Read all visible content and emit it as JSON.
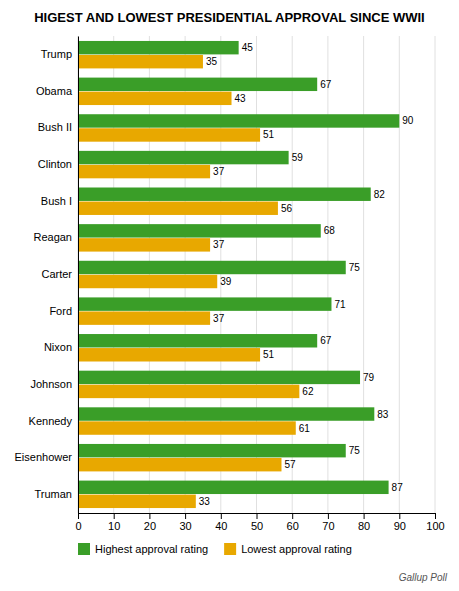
{
  "chart_data": {
    "type": "bar",
    "orientation": "horizontal",
    "title": "HIGEST AND LOWEST PRESIDENTIAL APPROVAL SINCE WWII",
    "categories": [
      "Trump",
      "Obama",
      "Bush II",
      "Clinton",
      "Bush I",
      "Reagan",
      "Carter",
      "Ford",
      "Nixon",
      "Johnson",
      "Kennedy",
      "Eisenhower",
      "Truman"
    ],
    "series": [
      {
        "name": "Highest approval rating",
        "color": "#3a9e28",
        "values": [
          45,
          67,
          90,
          59,
          82,
          68,
          75,
          71,
          67,
          79,
          83,
          75,
          87
        ]
      },
      {
        "name": "Lowest approval rating",
        "color": "#e8a800",
        "values": [
          35,
          43,
          51,
          37,
          56,
          37,
          39,
          37,
          51,
          62,
          61,
          57,
          33
        ]
      }
    ],
    "xlim": [
      0,
      100
    ],
    "xticks": [
      0,
      10,
      20,
      30,
      40,
      50,
      60,
      70,
      80,
      90,
      100
    ],
    "grid": true,
    "legend": "lower left",
    "data_labels": true,
    "annotations": [
      "Gallup Poll"
    ]
  }
}
